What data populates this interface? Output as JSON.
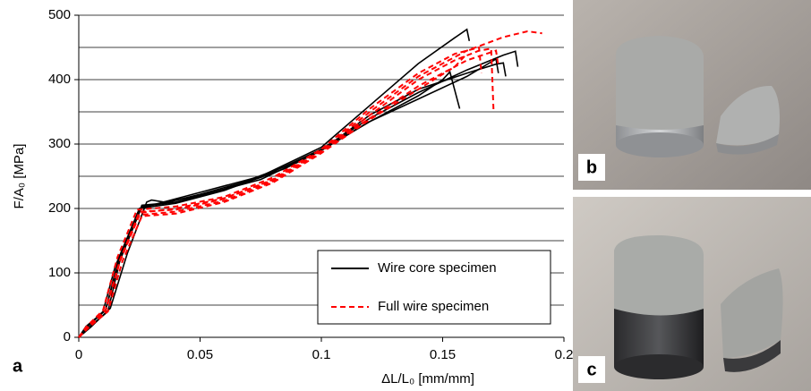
{
  "chart_data": {
    "type": "line",
    "x_label": "ΔL/L₀ [mm/mm]",
    "y_label": "F/A₀ [MPa]",
    "xlim": [
      0,
      0.2
    ],
    "xticks": [
      0,
      0.05,
      0.1,
      0.15,
      0.2
    ],
    "ylim": [
      0,
      500
    ],
    "yticks": [
      0,
      100,
      200,
      300,
      400,
      500
    ],
    "ygrid": [
      50,
      100,
      150,
      200,
      250,
      300,
      350,
      400,
      450,
      500
    ],
    "legend": "lower right",
    "series": [
      {
        "name": "Wire core specimen",
        "color": "#000000",
        "dashed": false,
        "curves": [
          {
            "x": [
              0,
              0.003,
              0.01,
              0.015,
              0.025,
              0.03,
              0.05,
              0.075,
              0.1,
              0.12,
              0.14,
              0.155,
              0.16,
              0.161
            ],
            "values": [
              0,
              15,
              40,
              110,
              200,
              205,
              225,
              250,
              295,
              360,
              425,
              465,
              478,
              460
            ]
          },
          {
            "x": [
              0,
              0.004,
              0.011,
              0.016,
              0.026,
              0.035,
              0.05,
              0.075,
              0.1,
              0.12,
              0.14,
              0.16,
              0.175,
              0.18,
              0.181
            ],
            "values": [
              0,
              18,
              42,
              110,
              205,
              208,
              222,
              248,
              292,
              340,
              380,
              415,
              438,
              444,
              420
            ]
          },
          {
            "x": [
              0,
              0.005,
              0.013,
              0.02,
              0.028,
              0.03,
              0.035,
              0.05,
              0.075,
              0.1,
              0.12,
              0.14,
              0.16,
              0.172,
              0.173
            ],
            "values": [
              0,
              16,
              45,
              130,
              210,
              213,
              210,
              220,
              245,
              290,
              335,
              370,
              405,
              432,
              410
            ]
          },
          {
            "x": [
              0,
              0.004,
              0.012,
              0.017,
              0.026,
              0.04,
              0.06,
              0.085,
              0.1,
              0.12,
              0.14,
              0.15,
              0.153,
              0.157
            ],
            "values": [
              0,
              15,
              40,
              120,
              203,
              210,
              230,
              265,
              292,
              335,
              375,
              400,
              412,
              355
            ]
          },
          {
            "x": [
              0,
              0.003,
              0.011,
              0.016,
              0.025,
              0.04,
              0.06,
              0.085,
              0.1,
              0.12,
              0.14,
              0.16,
              0.172,
              0.175,
              0.176
            ],
            "values": [
              0,
              17,
              42,
              115,
              200,
              208,
              228,
              262,
              290,
              345,
              385,
              410,
              424,
              426,
              405
            ]
          }
        ]
      },
      {
        "name": "Full wire specimen",
        "color": "#ff0000",
        "dashed": true,
        "curves": [
          {
            "x": [
              0,
              0.004,
              0.011,
              0.017,
              0.025,
              0.04,
              0.06,
              0.08,
              0.1,
              0.12,
              0.14,
              0.16,
              0.175,
              0.185,
              0.191
            ],
            "values": [
              0,
              16,
              42,
              120,
              195,
              198,
              215,
              245,
              290,
              350,
              405,
              445,
              466,
              475,
              472
            ]
          },
          {
            "x": [
              0,
              0.004,
              0.011,
              0.017,
              0.025,
              0.04,
              0.06,
              0.08,
              0.1,
              0.12,
              0.14,
              0.155,
              0.165,
              0.17,
              0.171
            ],
            "values": [
              0,
              15,
              40,
              118,
              190,
              195,
              212,
              242,
              288,
              345,
              400,
              430,
              445,
              448,
              350
            ]
          },
          {
            "x": [
              0,
              0.003,
              0.01,
              0.016,
              0.024,
              0.04,
              0.06,
              0.08,
              0.1,
              0.12,
              0.14,
              0.155,
              0.165,
              0.166
            ],
            "values": [
              0,
              16,
              42,
              125,
              198,
              203,
              218,
              248,
              292,
              355,
              410,
              440,
              450,
              410
            ]
          },
          {
            "x": [
              0,
              0.004,
              0.011,
              0.017,
              0.025,
              0.04,
              0.06,
              0.08,
              0.1,
              0.12,
              0.14,
              0.16,
              0.172,
              0.173
            ],
            "values": [
              0,
              15,
              41,
              120,
              193,
              200,
              216,
              244,
              289,
              340,
              390,
              430,
              445,
              420
            ]
          },
          {
            "x": [
              0,
              0.004,
              0.012,
              0.018,
              0.026,
              0.04,
              0.06,
              0.08,
              0.1,
              0.12,
              0.14,
              0.155,
              0.16
            ],
            "values": [
              0,
              15,
              40,
              118,
              188,
              192,
              210,
              240,
              286,
              338,
              385,
              420,
              440
            ]
          }
        ]
      }
    ]
  },
  "panel_labels": [
    "a",
    "b",
    "c"
  ]
}
